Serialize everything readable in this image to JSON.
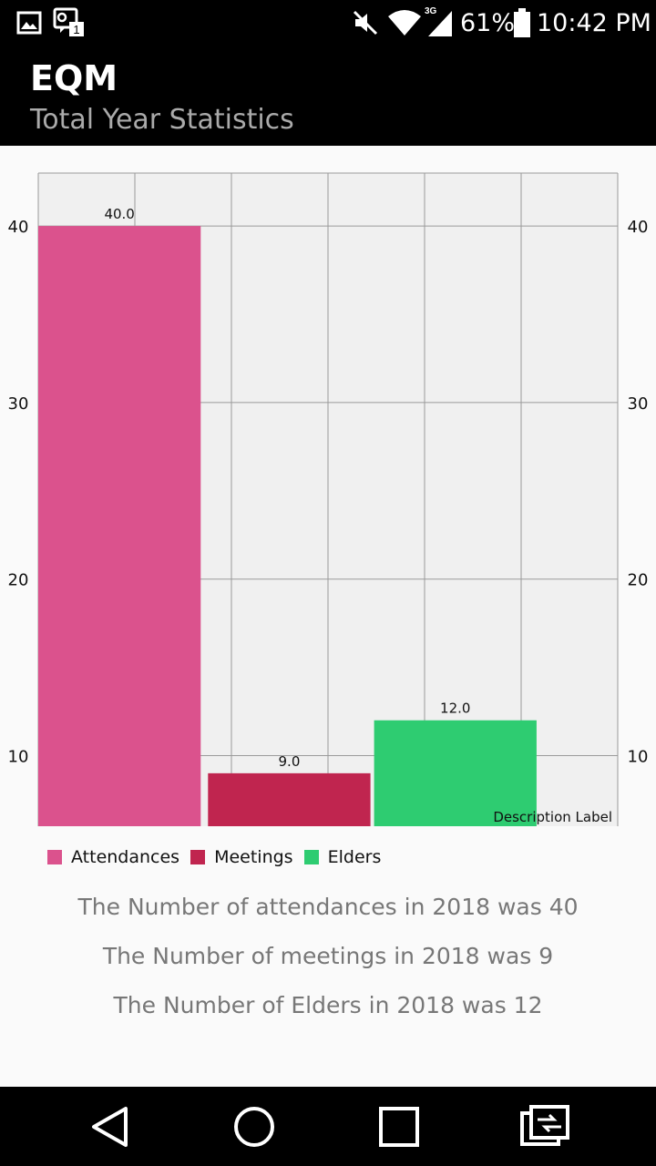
{
  "status_bar": {
    "network": "3G",
    "battery": "61%",
    "time": "10:42 PM"
  },
  "app_bar": {
    "title": "EQM",
    "subtitle": "Total Year Statistics"
  },
  "chart_data": {
    "type": "bar",
    "categories": [
      "Attendances",
      "Meetings",
      "Elders"
    ],
    "values": [
      40,
      9,
      12
    ],
    "value_labels": [
      "40.0",
      "9.0",
      "12.0"
    ],
    "colors": [
      "#DB528D",
      "#C0254F",
      "#2ECC71"
    ],
    "ylim": [
      6,
      43
    ],
    "yticks": [
      10,
      20,
      30,
      40
    ],
    "ytick_labels": [
      "10",
      "20",
      "30",
      "40"
    ],
    "grid": true,
    "legend": "bottom-left",
    "description": "Description Label"
  },
  "legend": {
    "items": [
      {
        "label": "Attendances",
        "color": "#DB528D"
      },
      {
        "label": "Meetings",
        "color": "#C0254F"
      },
      {
        "label": "Elders",
        "color": "#2ECC71"
      }
    ]
  },
  "stats": {
    "attendances": "The Number of attendances in 2018 was 40",
    "meetings": "The Number of meetings in 2018 was 9",
    "elders": "The Number of Elders in 2018 was 12"
  },
  "nav": {
    "back_icon": "triangle-back-icon",
    "home_icon": "circle-home-icon",
    "recents_icon": "square-recents-icon",
    "switch_icon": "switch-screens-icon"
  }
}
